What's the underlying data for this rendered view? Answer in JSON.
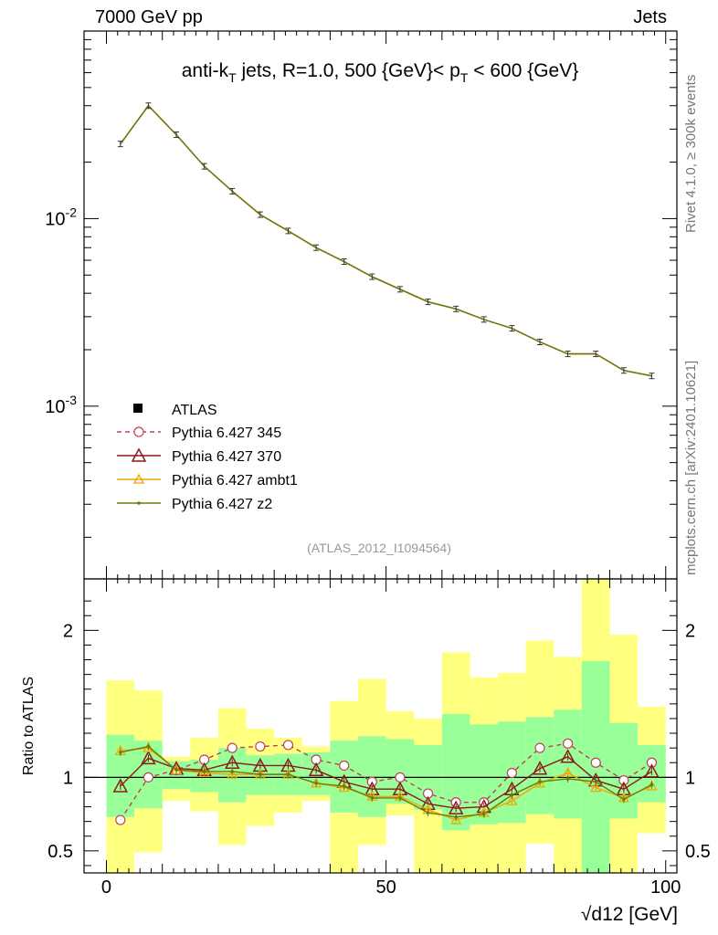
{
  "header": {
    "left": "7000 GeV pp",
    "right": "Jets"
  },
  "side_labels": {
    "rivet": "Rivet 4.1.0, ≥ 300k events",
    "mcplots": "mcplots.cern.ch [arXiv:2401.10621]"
  },
  "chart_data": {
    "type": "line",
    "title": "anti-k_T jets, R=1.0, 500 {GeV}< p_T < 600 {GeV}",
    "analysis_id": "(ATLAS_2012_I1094564)",
    "xlabel": "√d12 [GeV]",
    "ylabel_ratio": "Ratio to ATLAS",
    "xlim": [
      -4,
      102
    ],
    "ylim_main": [
      0.00012,
      0.1
    ],
    "ylim_ratio": [
      0.35,
      2.35
    ],
    "x_ticks": [
      0,
      50,
      100
    ],
    "y_ticks_main": [
      "10^-2",
      "10^-3"
    ],
    "y_ticks_ratio": [
      0.5,
      1,
      2
    ],
    "x": [
      2.5,
      7.5,
      12.5,
      17.5,
      22.5,
      27.5,
      32.5,
      37.5,
      42.5,
      47.5,
      52.5,
      57.5,
      62.5,
      67.5,
      72.5,
      77.5,
      82.5,
      87.5,
      92.5,
      97.5
    ],
    "data": {
      "name": "ATLAS",
      "values": [
        0.025,
        0.04,
        0.028,
        0.019,
        0.014,
        0.0105,
        0.0086,
        0.007,
        0.0059,
        0.0049,
        0.0042,
        0.0036,
        0.0033,
        0.0029,
        0.0026,
        0.0022,
        0.0019,
        0.0019,
        0.00155,
        0.00145
      ]
    },
    "series": [
      {
        "name": "Pythia 6.427 345",
        "color": "#c0405a",
        "style": "dashed",
        "marker": "circle",
        "ratio": [
          0.71,
          1.0,
          1.05,
          1.12,
          1.2,
          1.21,
          1.22,
          1.12,
          1.08,
          0.97,
          1.0,
          0.89,
          0.83,
          0.83,
          1.03,
          1.2,
          1.23,
          1.1,
          0.98,
          1.1
        ]
      },
      {
        "name": "Pythia 6.427 370",
        "color": "#8b1a1a",
        "style": "solid",
        "marker": "triangle",
        "ratio": [
          0.94,
          1.13,
          1.06,
          1.05,
          1.1,
          1.08,
          1.08,
          1.05,
          0.97,
          0.92,
          0.92,
          0.82,
          0.79,
          0.8,
          0.92,
          1.06,
          1.14,
          0.98,
          0.92,
          1.04
        ]
      },
      {
        "name": "Pythia 6.427 ambt1",
        "color": "#f0a800",
        "style": "solid",
        "marker": "triangle-small",
        "ratio": [
          1.18,
          1.2,
          1.05,
          1.03,
          1.02,
          1.02,
          1.02,
          0.96,
          0.93,
          0.87,
          0.87,
          0.78,
          0.71,
          0.76,
          0.84,
          0.96,
          1.03,
          0.93,
          0.86,
          0.94
        ]
      },
      {
        "name": "Pythia 6.427 z2",
        "color": "#6b7a10",
        "style": "solid",
        "marker": "dot",
        "ratio": [
          1.17,
          1.21,
          1.05,
          1.04,
          1.04,
          1.02,
          1.02,
          0.96,
          0.94,
          0.86,
          0.86,
          0.76,
          0.73,
          0.75,
          0.88,
          0.97,
          0.99,
          0.97,
          0.85,
          0.95
        ]
      }
    ],
    "uncertainty_bands": {
      "x_edges": [
        0,
        5,
        10,
        15,
        20,
        25,
        30,
        35,
        40,
        45,
        50,
        55,
        60,
        65,
        70,
        75,
        80,
        85,
        90,
        95,
        100
      ],
      "yellow_low": [
        0.35,
        0.49,
        0.84,
        0.77,
        0.54,
        0.67,
        0.76,
        0.84,
        0.35,
        0.54,
        0.74,
        0.35,
        0.35,
        0.35,
        0.35,
        0.55,
        0.35,
        0.35,
        0.35,
        0.62
      ],
      "yellow_high": [
        1.66,
        1.59,
        1.14,
        1.27,
        1.47,
        1.33,
        1.27,
        1.21,
        1.52,
        1.67,
        1.45,
        1.4,
        1.85,
        1.68,
        1.71,
        1.93,
        1.82,
        2.35,
        1.97,
        1.48
      ],
      "green_low": [
        0.73,
        0.79,
        0.92,
        0.9,
        0.83,
        0.88,
        0.88,
        0.88,
        0.76,
        0.73,
        0.82,
        0.78,
        0.64,
        0.68,
        0.69,
        0.75,
        0.72,
        0.35,
        0.72,
        0.83
      ],
      "green_high": [
        1.29,
        1.25,
        1.11,
        1.12,
        1.2,
        1.15,
        1.16,
        1.17,
        1.25,
        1.28,
        1.26,
        1.22,
        1.43,
        1.36,
        1.38,
        1.41,
        1.46,
        1.79,
        1.37,
        1.22
      ]
    },
    "legend_position": "lower-left"
  }
}
